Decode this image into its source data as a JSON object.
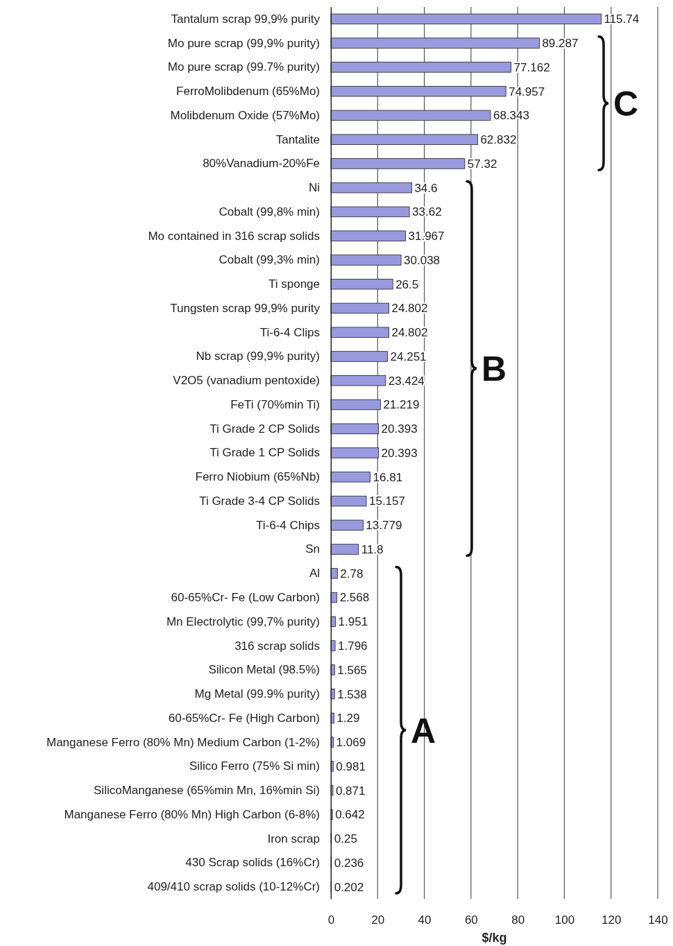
{
  "chart_data": {
    "type": "bar",
    "orientation": "horizontal",
    "xlabel": "$/kg",
    "categories": [
      "Tantalum scrap 99,9% purity",
      "Mo pure scrap (99,9% purity)",
      "Mo pure scrap (99.7% purity)",
      "FerroMolibdenum (65%Mo)",
      "Molibdenum Oxide (57%Mo)",
      "Tantalite",
      "80%Vanadium-20%Fe",
      "Ni",
      "Cobalt (99,8% min)",
      "Mo contained in 316 scrap solids",
      "Cobalt (99,3% min)",
      "Ti sponge",
      "Tungsten scrap 99,9% purity",
      "Ti-6-4  Clips",
      "Nb scrap (99,9% purity)",
      "V2O5 (vanadium pentoxide)",
      "FeTi (70%min Ti)",
      "Ti Grade 2 CP Solids",
      "Ti Grade 1 CP Solids",
      "Ferro Niobium (65%Nb)",
      "Ti Grade 3-4 CP Solids",
      "Ti-6-4  Chips",
      "Sn",
      "Al",
      "60-65%Cr- Fe  (Low Carbon)",
      "Mn Electrolytic (99,7% purity)",
      "316 scrap solids",
      "Silicon Metal (98.5%)",
      "Mg Metal (99.9% purity)",
      "60-65%Cr- Fe  (High Carbon)",
      "Manganese Ferro (80% Mn) Medium Carbon (1-2%)",
      "Silico Ferro (75% Si min)",
      "SilicoManganese  (65%min Mn, 16%min Si)",
      "Manganese Ferro (80% Mn) High Carbon (6-8%)",
      "Iron scrap",
      "430 Scrap solids (16%Cr)",
      "409/410 scrap solids (10-12%Cr)"
    ],
    "values": [
      115.74,
      89.287,
      77.162,
      74.957,
      68.343,
      62.832,
      57.32,
      34.6,
      33.62,
      31.967,
      30.038,
      26.5,
      24.802,
      24.802,
      24.251,
      23.424,
      21.219,
      20.393,
      20.393,
      16.81,
      15.157,
      13.779,
      11.8,
      2.78,
      2.568,
      1.951,
      1.796,
      1.565,
      1.538,
      1.29,
      1.069,
      0.981,
      0.871,
      0.642,
      0.25,
      0.236,
      0.202
    ],
    "color": "#9999dd",
    "data_labels": true,
    "xlim": [
      0,
      140
    ],
    "xticks": [
      0,
      20,
      40,
      60,
      80,
      100,
      120,
      140
    ],
    "grid": "x",
    "annotations": [
      "C",
      "B",
      "A"
    ]
  }
}
